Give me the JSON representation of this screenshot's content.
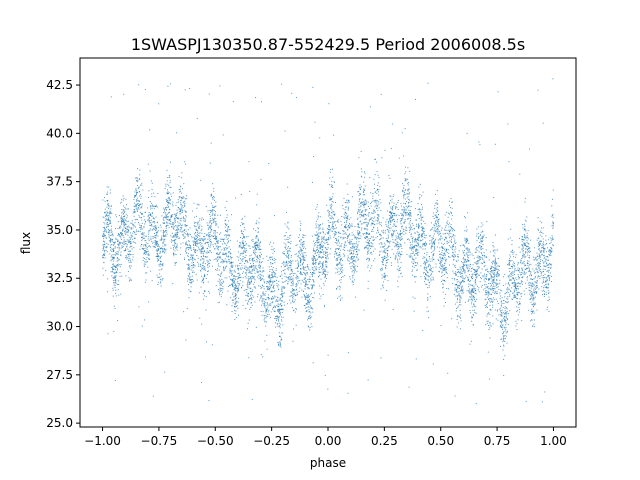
{
  "chart_data": {
    "type": "scatter",
    "title": "1SWASPJ130350.87-552429.5 Period 2006008.5s",
    "xlabel": "phase",
    "ylabel": "flux",
    "xlim": [
      -1.1,
      1.1
    ],
    "ylim": [
      24.8,
      43.9
    ],
    "x_ticks": [
      -1.0,
      -0.75,
      -0.5,
      -0.25,
      0.0,
      0.25,
      0.5,
      0.75,
      1.0
    ],
    "x_tick_labels": [
      "−1.00",
      "−0.75",
      "−0.50",
      "−0.25",
      "0.00",
      "0.25",
      "0.50",
      "0.75",
      "1.00"
    ],
    "y_ticks": [
      25.0,
      27.5,
      30.0,
      32.5,
      35.0,
      37.5,
      40.0,
      42.5
    ],
    "y_tick_labels": [
      "25.0",
      "27.5",
      "30.0",
      "32.5",
      "35.0",
      "37.5",
      "40.0",
      "42.5"
    ],
    "grid": false,
    "legend": "none",
    "marker_color": "#1f77b4",
    "series": [
      {
        "x_range": [
          -1.0,
          1.0
        ],
        "trend": [
          {
            "x": -1.0,
            "y": 34.2
          },
          {
            "x": -0.9,
            "y": 34.8
          },
          {
            "x": -0.8,
            "y": 35.0
          },
          {
            "x": -0.7,
            "y": 35.2
          },
          {
            "x": -0.6,
            "y": 34.6
          },
          {
            "x": -0.5,
            "y": 33.8
          },
          {
            "x": -0.4,
            "y": 33.2
          },
          {
            "x": -0.3,
            "y": 32.3
          },
          {
            "x": -0.2,
            "y": 31.8
          },
          {
            "x": -0.1,
            "y": 32.8
          },
          {
            "x": 0.0,
            "y": 34.2
          },
          {
            "x": 0.1,
            "y": 34.8
          },
          {
            "x": 0.2,
            "y": 35.0
          },
          {
            "x": 0.3,
            "y": 35.2
          },
          {
            "x": 0.4,
            "y": 34.6
          },
          {
            "x": 0.5,
            "y": 33.8
          },
          {
            "x": 0.6,
            "y": 33.2
          },
          {
            "x": 0.7,
            "y": 32.3
          },
          {
            "x": 0.8,
            "y": 31.8
          },
          {
            "x": 0.9,
            "y": 32.8
          },
          {
            "x": 1.0,
            "y": 34.2
          }
        ],
        "scatter_half_width": 2.0,
        "outlier_range": [
          26.0,
          43.0
        ]
      }
    ]
  }
}
